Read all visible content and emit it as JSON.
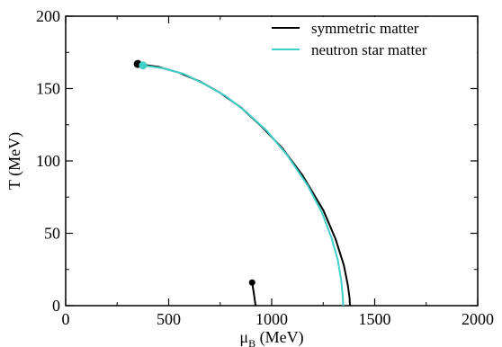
{
  "chart_data": {
    "type": "line",
    "xlabel": {
      "main": "μ",
      "sub": "B",
      "rest": " (MeV)"
    },
    "ylabel": "T (MeV)",
    "xlim": [
      0,
      2000
    ],
    "ylim": [
      0,
      200
    ],
    "xticks": [
      0,
      500,
      1000,
      1500,
      2000
    ],
    "yticks": [
      0,
      50,
      100,
      150,
      200
    ],
    "xtick_labels": [
      "0",
      "500",
      "1000",
      "1500",
      "2000"
    ],
    "ytick_labels": [
      "0",
      "50",
      "100",
      "150",
      "200"
    ],
    "minor_xticks": [
      250,
      750,
      1250,
      1750
    ],
    "minor_yticks": [
      25,
      75,
      125,
      175
    ],
    "grid": false,
    "legend_position": "top-right",
    "series": [
      {
        "name": "symmetric matter",
        "color": "#000000",
        "x": [
          350,
          450,
          550,
          650,
          750,
          850,
          950,
          1050,
          1150,
          1250,
          1310,
          1350,
          1370,
          1378,
          1380
        ],
        "y": [
          167,
          165,
          161,
          155,
          147,
          137,
          124,
          109,
          90,
          66,
          46,
          28,
          14,
          5,
          0
        ],
        "endpoint": {
          "x": 350,
          "y": 167
        }
      },
      {
        "name": "neutron star matter",
        "color": "#40d0c8",
        "x": [
          375,
          475,
          575,
          675,
          775,
          875,
          975,
          1075,
          1175,
          1245,
          1290,
          1320,
          1338,
          1345,
          1347
        ],
        "y": [
          166,
          164,
          160,
          153,
          145,
          134,
          121,
          104,
          83,
          64,
          47,
          32,
          17,
          6,
          0
        ],
        "endpoint": {
          "x": 375,
          "y": 166
        }
      },
      {
        "name": "",
        "color": "#000000",
        "x": [
          905,
          912,
          918,
          922
        ],
        "y": [
          16,
          10,
          4,
          0
        ],
        "endpoint": {
          "x": 905,
          "y": 16
        }
      }
    ]
  }
}
